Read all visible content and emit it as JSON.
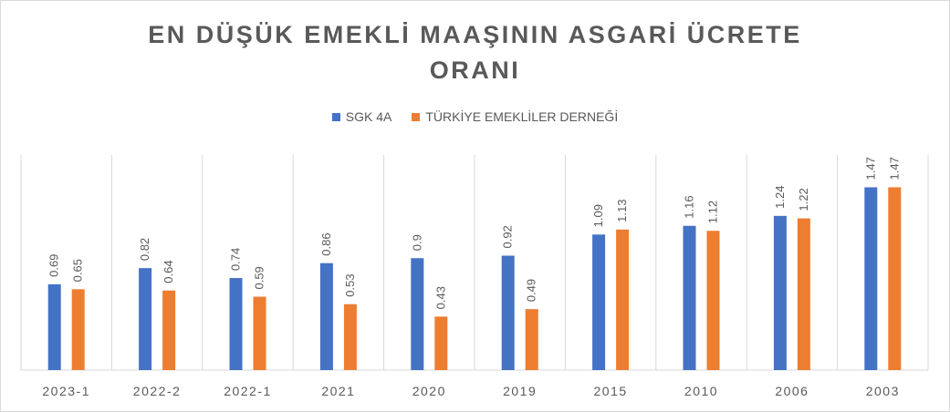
{
  "colors": {
    "series1": "#4472c4",
    "series2": "#ed7d31",
    "text": "#595959",
    "grid": "#d9d9d9"
  },
  "chart_data": {
    "type": "bar",
    "title_lines": [
      "EN DÜŞÜK EMEKLİ MAAŞININ ASGARİ ÜCRETE",
      "ORANI"
    ],
    "categories": [
      "2023-1",
      "2022-2",
      "2022-1",
      "2021",
      "2020",
      "2019",
      "2015",
      "2010",
      "2006",
      "2003"
    ],
    "series": [
      {
        "name": "SGK 4A",
        "values": [
          0.69,
          0.82,
          0.74,
          0.86,
          0.9,
          0.92,
          1.09,
          1.16,
          1.24,
          1.47
        ]
      },
      {
        "name": "TÜRKİYE EMEKLİLER DERNEĞİ",
        "values": [
          0.65,
          0.64,
          0.59,
          0.53,
          0.43,
          0.49,
          1.13,
          1.12,
          1.22,
          1.47
        ]
      }
    ],
    "data_labels": [
      [
        "0.69",
        "0.82",
        "0.74",
        "0.86",
        "0.9",
        "0.92",
        "1.09",
        "1.16",
        "1.24",
        "1.47"
      ],
      [
        "0.65",
        "0.64",
        "0.59",
        "0.53",
        "0.43",
        "0.49",
        "1.13",
        "1.12",
        "1.22",
        "1.47"
      ]
    ],
    "ylim": [
      0,
      1.73
    ],
    "legend_position": "top",
    "gridlines": "vertical separators"
  }
}
